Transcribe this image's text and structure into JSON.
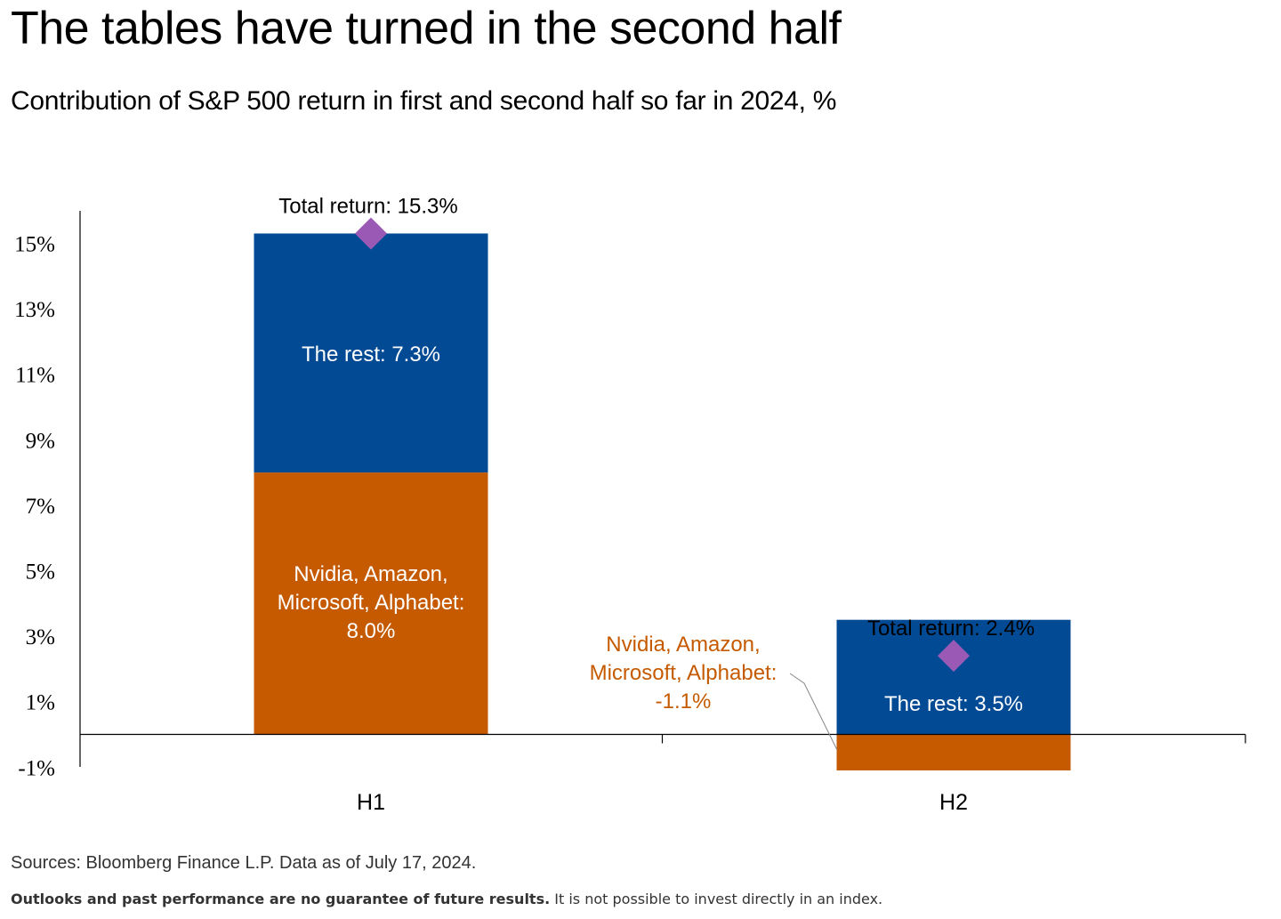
{
  "header": {
    "title": "The tables have turned in the second half",
    "subtitle": "Contribution of S&P 500 return in first and second half so far in 2024, %"
  },
  "chart_data": {
    "type": "bar",
    "stacked": true,
    "categories": [
      "H1",
      "H2"
    ],
    "ylim": [
      -1,
      16
    ],
    "yticks": [
      15,
      13,
      11,
      9,
      7,
      5,
      3,
      1,
      -1
    ],
    "ytick_labels": [
      "15%",
      "13%",
      "11%",
      "9%",
      "7%",
      "5%",
      "3%",
      "1%",
      "-1%"
    ],
    "series": [
      {
        "values": [
          8.0,
          -1.1
        ],
        "labels": [
          "Nvidia, Amazon, Microsoft, Alphabet: 8.0%",
          "Nvidia, Amazon, Microsoft, Alphabet: -1.1%"
        ],
        "color": "#c55a00"
      },
      {
        "values": [
          7.3,
          3.5
        ],
        "labels": [
          "The rest: 7.3%",
          "The rest: 3.5%"
        ],
        "color": "#034a94"
      }
    ],
    "total": {
      "values": [
        15.3,
        2.4
      ],
      "labels": [
        "Total return: 15.3%",
        "Total return: 2.4%"
      ],
      "color": "#9b59b6"
    }
  },
  "footer": {
    "source": "Sources: Bloomberg Finance L.P. Data as of July 17, 2024.",
    "disclaimer_bold": "Outlooks and past performance are no guarantee of future results.",
    "disclaimer_rest": " It is not possible to invest directly in an index."
  }
}
